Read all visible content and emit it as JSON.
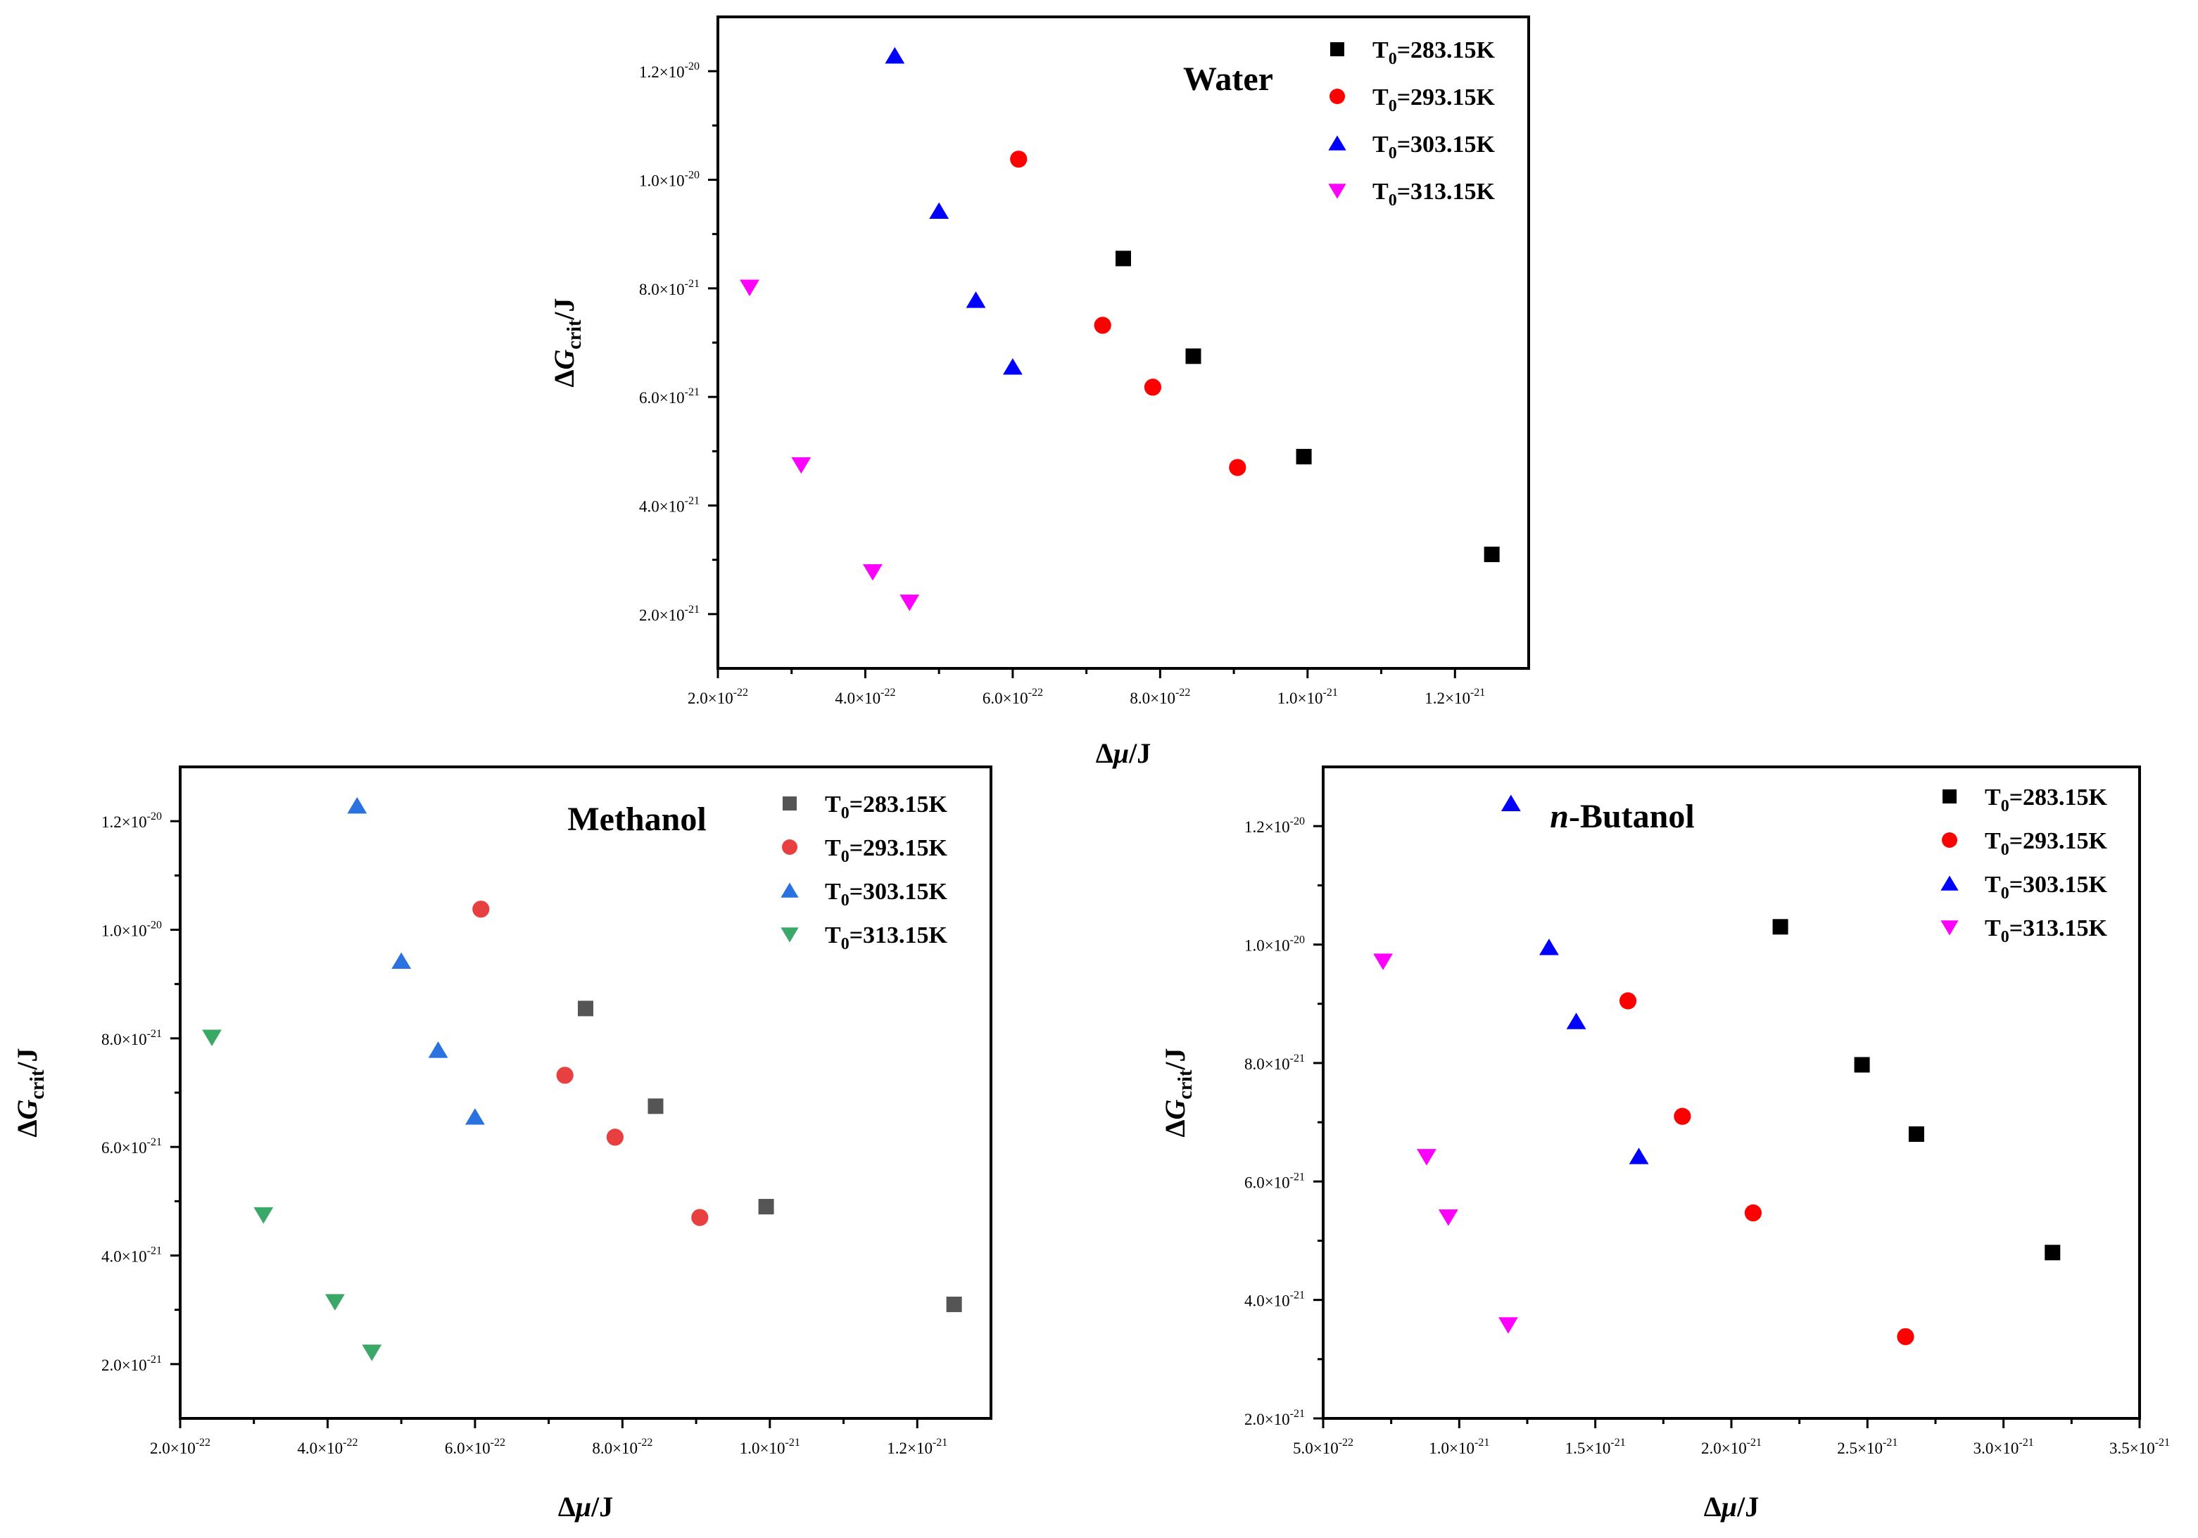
{
  "chart_data": [
    {
      "type": "scatter",
      "title": "Water",
      "xlabel": "Δμ/J",
      "ylabel": "ΔGcrit/J",
      "xlim": [
        2e-22,
        1.3e-21
      ],
      "ylim": [
        1e-21,
        1.3e-20
      ],
      "xticks": [
        2e-22,
        4e-22,
        6e-22,
        8e-22,
        1e-21,
        1.2e-21
      ],
      "yticks": [
        2e-21,
        4e-21,
        6e-21,
        8e-21,
        1e-20,
        1.2e-20
      ],
      "xtick_labels": [
        {
          "mant": "2.0",
          "exp": "-22"
        },
        {
          "mant": "4.0",
          "exp": "-22"
        },
        {
          "mant": "6.0",
          "exp": "-22"
        },
        {
          "mant": "8.0",
          "exp": "-22"
        },
        {
          "mant": "1.0",
          "exp": "-21"
        },
        {
          "mant": "1.2",
          "exp": "-21"
        }
      ],
      "ytick_labels": [
        {
          "mant": "2.0",
          "exp": "-21"
        },
        {
          "mant": "4.0",
          "exp": "-21"
        },
        {
          "mant": "6.0",
          "exp": "-21"
        },
        {
          "mant": "8.0",
          "exp": "-21"
        },
        {
          "mant": "1.0",
          "exp": "-20"
        },
        {
          "mant": "1.2",
          "exp": "-20"
        }
      ],
      "legend_position": "top-right",
      "series": [
        {
          "name": "T0=283.15K",
          "prefix": "T",
          "sub": "0",
          "rest": "=283.15K",
          "marker": "square",
          "color": "#000000",
          "x": [
            7.5e-22,
            8.45e-22,
            9.95e-22,
            1.25e-21
          ],
          "y": [
            8.55e-21,
            6.75e-21,
            4.9e-21,
            3.1e-21
          ]
        },
        {
          "name": "T0=293.15K",
          "prefix": "T",
          "sub": "0",
          "rest": "=293.15K",
          "marker": "circle",
          "color": "#ff0000",
          "x": [
            6.08e-22,
            7.22e-22,
            7.9e-22,
            9.05e-22
          ],
          "y": [
            1.038e-20,
            7.32e-21,
            6.18e-21,
            4.7e-21
          ]
        },
        {
          "name": "T0=303.15K",
          "prefix": "T",
          "sub": "0",
          "rest": "=303.15K",
          "marker": "triangle-up",
          "color": "#0000ff",
          "x": [
            4.4e-22,
            5e-22,
            5.5e-22,
            6e-22
          ],
          "y": [
            1.228e-20,
            9.42e-21,
            7.78e-21,
            6.55e-21
          ]
        },
        {
          "name": "T0=313.15K",
          "prefix": "T",
          "sub": "0",
          "rest": "=313.15K",
          "marker": "triangle-down",
          "color": "#ff00ff",
          "x": [
            2.43e-22,
            3.13e-22,
            4.1e-22,
            4.6e-22
          ],
          "y": [
            8.02e-21,
            4.75e-21,
            2.78e-21,
            2.22e-21
          ]
        }
      ]
    },
    {
      "type": "scatter",
      "title": "Methanol",
      "xlabel": "Δμ/J",
      "ylabel": "ΔGcrit/J",
      "xlim": [
        2e-22,
        1.3e-21
      ],
      "ylim": [
        1e-21,
        1.3e-20
      ],
      "xticks": [
        2e-22,
        4e-22,
        6e-22,
        8e-22,
        1e-21,
        1.2e-21
      ],
      "yticks": [
        2e-21,
        4e-21,
        6e-21,
        8e-21,
        1e-20,
        1.2e-20
      ],
      "xtick_labels": [
        {
          "mant": "2.0",
          "exp": "-22"
        },
        {
          "mant": "4.0",
          "exp": "-22"
        },
        {
          "mant": "6.0",
          "exp": "-22"
        },
        {
          "mant": "8.0",
          "exp": "-22"
        },
        {
          "mant": "1.0",
          "exp": "-21"
        },
        {
          "mant": "1.2",
          "exp": "-21"
        }
      ],
      "ytick_labels": [
        {
          "mant": "2.0",
          "exp": "-21"
        },
        {
          "mant": "4.0",
          "exp": "-21"
        },
        {
          "mant": "6.0",
          "exp": "-21"
        },
        {
          "mant": "8.0",
          "exp": "-21"
        },
        {
          "mant": "1.0",
          "exp": "-20"
        },
        {
          "mant": "1.2",
          "exp": "-20"
        }
      ],
      "legend_position": "top-right",
      "series": [
        {
          "name": "T0=283.15K",
          "prefix": "T",
          "sub": "0",
          "rest": "=283.15K",
          "marker": "square",
          "color": "#555555",
          "x": [
            7.5e-22,
            8.45e-22,
            9.95e-22,
            1.25e-21
          ],
          "y": [
            8.55e-21,
            6.75e-21,
            4.9e-21,
            3.1e-21
          ]
        },
        {
          "name": "T0=293.15K",
          "prefix": "T",
          "sub": "0",
          "rest": "=293.15K",
          "marker": "circle",
          "color": "#e84040",
          "x": [
            6.08e-22,
            7.22e-22,
            7.9e-22,
            9.05e-22
          ],
          "y": [
            1.038e-20,
            7.32e-21,
            6.18e-21,
            4.7e-21
          ]
        },
        {
          "name": "T0=303.15K",
          "prefix": "T",
          "sub": "0",
          "rest": "=303.15K",
          "marker": "triangle-up",
          "color": "#2a72e0",
          "x": [
            4.4e-22,
            5e-22,
            5.5e-22,
            6e-22
          ],
          "y": [
            1.228e-20,
            9.42e-21,
            7.78e-21,
            6.55e-21
          ]
        },
        {
          "name": "T0=313.15K",
          "prefix": "T",
          "sub": "0",
          "rest": "=313.15K",
          "marker": "triangle-down",
          "color": "#3aa867",
          "x": [
            2.43e-22,
            3.13e-22,
            4.1e-22,
            4.6e-22
          ],
          "y": [
            8.02e-21,
            4.75e-21,
            3.15e-21,
            2.22e-21
          ]
        }
      ]
    },
    {
      "type": "scatter",
      "title": "n-Butanol",
      "title_italic_part": "n",
      "title_rest": "-Butanol",
      "xlabel": "Δμ/J",
      "ylabel": "ΔGcrit/J",
      "xlim": [
        5e-22,
        3.5e-21
      ],
      "ylim": [
        2e-21,
        1.3e-20
      ],
      "xticks": [
        5e-22,
        1e-21,
        1.5e-21,
        2e-21,
        2.5e-21,
        3e-21,
        3.5e-21
      ],
      "yticks": [
        2e-21,
        4e-21,
        6e-21,
        8e-21,
        1e-20,
        1.2e-20
      ],
      "xtick_labels": [
        {
          "mant": "5.0",
          "exp": "-22"
        },
        {
          "mant": "1.0",
          "exp": "-21"
        },
        {
          "mant": "1.5",
          "exp": "-21"
        },
        {
          "mant": "2.0",
          "exp": "-21"
        },
        {
          "mant": "2.5",
          "exp": "-21"
        },
        {
          "mant": "3.0",
          "exp": "-21"
        },
        {
          "mant": "3.5",
          "exp": "-21"
        }
      ],
      "ytick_labels": [
        {
          "mant": "2.0",
          "exp": "-21"
        },
        {
          "mant": "4.0",
          "exp": "-21"
        },
        {
          "mant": "6.0",
          "exp": "-21"
        },
        {
          "mant": "8.0",
          "exp": "-21"
        },
        {
          "mant": "1.0",
          "exp": "-20"
        },
        {
          "mant": "1.2",
          "exp": "-20"
        }
      ],
      "legend_position": "top-right",
      "series": [
        {
          "name": "T0=283.15K",
          "prefix": "T",
          "sub": "0",
          "rest": "=283.15K",
          "marker": "square",
          "color": "#000000",
          "x": [
            2.18e-21,
            2.48e-21,
            2.68e-21,
            3.18e-21
          ],
          "y": [
            1.03e-20,
            7.97e-21,
            6.8e-21,
            4.8e-21
          ]
        },
        {
          "name": "T0=293.15K",
          "prefix": "T",
          "sub": "0",
          "rest": "=293.15K",
          "marker": "circle",
          "color": "#ff0000",
          "x": [
            1.62e-21,
            1.82e-21,
            2.08e-21,
            2.64e-21
          ],
          "y": [
            9.05e-21,
            7.1e-21,
            5.47e-21,
            3.38e-21
          ]
        },
        {
          "name": "T0=303.15K",
          "prefix": "T",
          "sub": "0",
          "rest": "=303.15K",
          "marker": "triangle-up",
          "color": "#0000ff",
          "x": [
            1.19e-21,
            1.33e-21,
            1.43e-21,
            1.66e-21
          ],
          "y": [
            1.238e-20,
            9.95e-21,
            8.7e-21,
            6.42e-21
          ]
        },
        {
          "name": "T0=313.15K",
          "prefix": "T",
          "sub": "0",
          "rest": "=313.15K",
          "marker": "triangle-down",
          "color": "#ff00ff",
          "x": [
            7.2e-22,
            8.8e-22,
            9.6e-22,
            1.18e-21
          ],
          "y": [
            9.72e-21,
            6.42e-21,
            5.4e-21,
            3.58e-21
          ]
        }
      ]
    }
  ]
}
